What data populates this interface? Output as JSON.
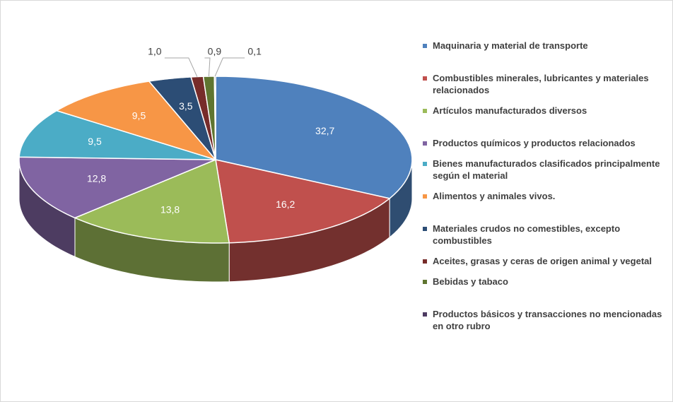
{
  "chart_data": {
    "type": "pie3d",
    "categories": [
      "Maquinaria y material de transporte",
      "Combustibles minerales, lubricantes y materiales relacionados",
      "Artículos manufacturados diversos",
      "Productos químicos y productos relacionados",
      "Bienes manufacturados clasificados principalmente según el material",
      "Alimentos y animales vivos.",
      "Materiales crudos no comestibles, excepto combustibles",
      "Aceites, grasas y ceras de origen animal y vegetal",
      "Bebidas y tabaco",
      "Productos básicos y transacciones no mencionadas en otro rubro"
    ],
    "values": [
      32.7,
      16.2,
      13.8,
      12.8,
      9.5,
      9.5,
      3.5,
      1.0,
      0.9,
      0.1
    ],
    "value_labels": [
      "32,7",
      "16,2",
      "13,8",
      "12,8",
      "9,5",
      "9,5",
      "3,5",
      "1,0",
      "0,9",
      "0,1"
    ],
    "colors": [
      "#4f81bd",
      "#c0504d",
      "#9bbb59",
      "#8064a2",
      "#4bacc6",
      "#f79646",
      "#2c4d75",
      "#772c2a",
      "#5f7530",
      "#4d3b62"
    ],
    "legend": "right"
  }
}
